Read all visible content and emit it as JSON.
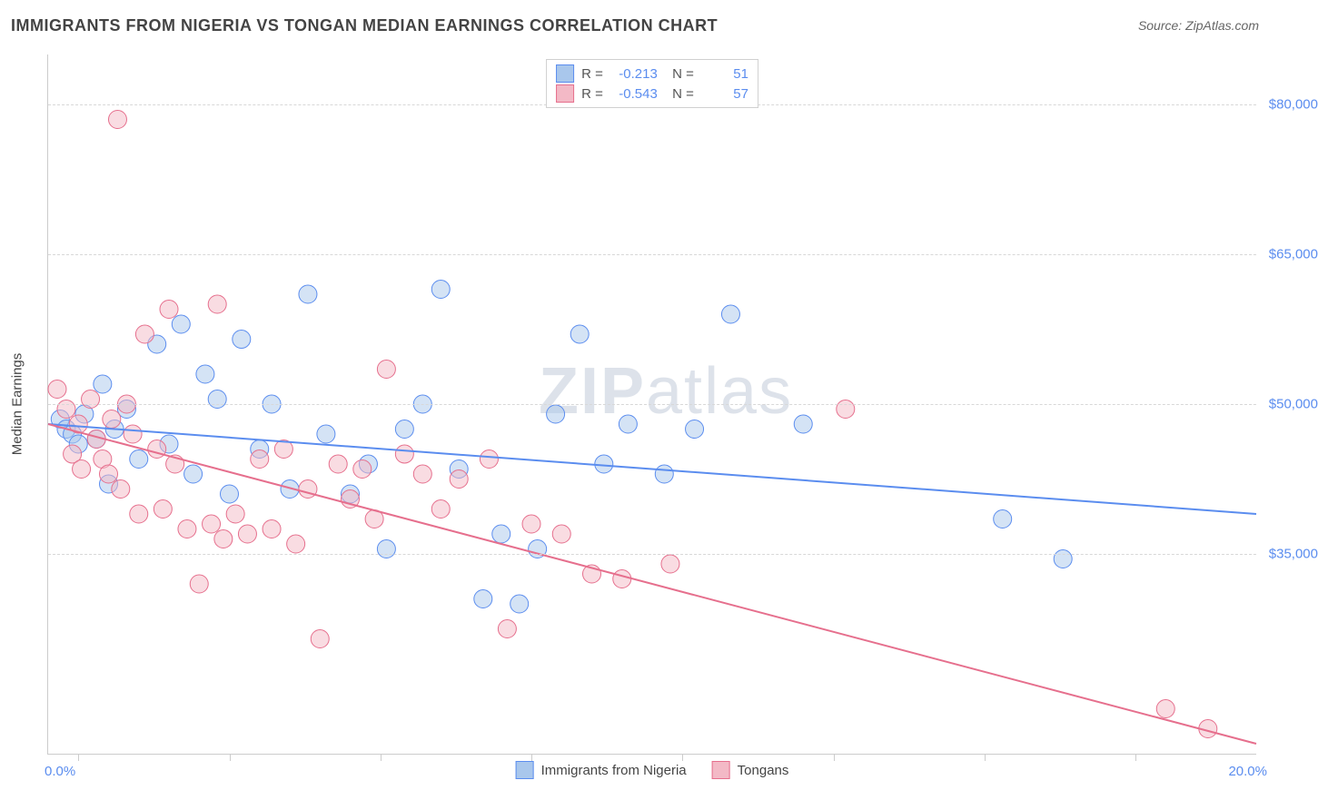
{
  "title": "IMMIGRANTS FROM NIGERIA VS TONGAN MEDIAN EARNINGS CORRELATION CHART",
  "source": "Source: ZipAtlas.com",
  "watermark": {
    "bold": "ZIP",
    "rest": "atlas"
  },
  "yaxis_title": "Median Earnings",
  "chart": {
    "type": "scatter",
    "xlim": [
      0,
      20
    ],
    "ylim": [
      15000,
      85000
    ],
    "xtick_positions": [
      0.5,
      3.0,
      5.5,
      8.0,
      10.5,
      13.0,
      15.5,
      18.0
    ],
    "xaxis_label_left": "0.0%",
    "xaxis_label_right": "20.0%",
    "yticks": [
      {
        "v": 35000,
        "label": "$35,000"
      },
      {
        "v": 50000,
        "label": "$50,000"
      },
      {
        "v": 65000,
        "label": "$65,000"
      },
      {
        "v": 80000,
        "label": "$80,000"
      }
    ],
    "grid_color": "#d8d8d8",
    "background_color": "#ffffff",
    "marker_radius": 10,
    "marker_opacity": 0.5,
    "line_width": 2,
    "series": [
      {
        "name": "Immigrants from Nigeria",
        "color_fill": "#a9c7ec",
        "color_stroke": "#5b8def",
        "R": "-0.213",
        "N": "51",
        "trend": {
          "x1": 0,
          "y1": 48000,
          "x2": 20,
          "y2": 39000
        },
        "points": [
          [
            0.2,
            48500
          ],
          [
            0.3,
            47500
          ],
          [
            0.4,
            47000
          ],
          [
            0.5,
            46000
          ],
          [
            0.6,
            49000
          ],
          [
            0.8,
            46500
          ],
          [
            0.9,
            52000
          ],
          [
            1.0,
            42000
          ],
          [
            1.1,
            47500
          ],
          [
            1.3,
            49500
          ],
          [
            1.5,
            44500
          ],
          [
            1.8,
            56000
          ],
          [
            2.0,
            46000
          ],
          [
            2.2,
            58000
          ],
          [
            2.4,
            43000
          ],
          [
            2.6,
            53000
          ],
          [
            2.8,
            50500
          ],
          [
            3.0,
            41000
          ],
          [
            3.2,
            56500
          ],
          [
            3.5,
            45500
          ],
          [
            3.7,
            50000
          ],
          [
            4.0,
            41500
          ],
          [
            4.3,
            61000
          ],
          [
            4.6,
            47000
          ],
          [
            5.0,
            41000
          ],
          [
            5.3,
            44000
          ],
          [
            5.6,
            35500
          ],
          [
            5.9,
            47500
          ],
          [
            6.2,
            50000
          ],
          [
            6.5,
            61500
          ],
          [
            6.8,
            43500
          ],
          [
            7.2,
            30500
          ],
          [
            7.5,
            37000
          ],
          [
            7.8,
            30000
          ],
          [
            8.1,
            35500
          ],
          [
            8.4,
            49000
          ],
          [
            8.8,
            57000
          ],
          [
            9.2,
            44000
          ],
          [
            9.6,
            48000
          ],
          [
            10.2,
            43000
          ],
          [
            10.7,
            47500
          ],
          [
            11.3,
            59000
          ],
          [
            12.5,
            48000
          ],
          [
            15.8,
            38500
          ],
          [
            16.8,
            34500
          ]
        ]
      },
      {
        "name": "Tongans",
        "color_fill": "#f3b9c6",
        "color_stroke": "#e66f8d",
        "R": "-0.543",
        "N": "57",
        "trend": {
          "x1": 0,
          "y1": 48000,
          "x2": 20,
          "y2": 16000
        },
        "points": [
          [
            0.15,
            51500
          ],
          [
            0.3,
            49500
          ],
          [
            0.4,
            45000
          ],
          [
            0.5,
            48000
          ],
          [
            0.55,
            43500
          ],
          [
            0.7,
            50500
          ],
          [
            0.8,
            46500
          ],
          [
            0.9,
            44500
          ],
          [
            1.0,
            43000
          ],
          [
            1.05,
            48500
          ],
          [
            1.15,
            78500
          ],
          [
            1.2,
            41500
          ],
          [
            1.3,
            50000
          ],
          [
            1.4,
            47000
          ],
          [
            1.5,
            39000
          ],
          [
            1.6,
            57000
          ],
          [
            1.8,
            45500
          ],
          [
            1.9,
            39500
          ],
          [
            2.0,
            59500
          ],
          [
            2.1,
            44000
          ],
          [
            2.3,
            37500
          ],
          [
            2.5,
            32000
          ],
          [
            2.7,
            38000
          ],
          [
            2.8,
            60000
          ],
          [
            2.9,
            36500
          ],
          [
            3.1,
            39000
          ],
          [
            3.3,
            37000
          ],
          [
            3.5,
            44500
          ],
          [
            3.7,
            37500
          ],
          [
            3.9,
            45500
          ],
          [
            4.1,
            36000
          ],
          [
            4.3,
            41500
          ],
          [
            4.5,
            26500
          ],
          [
            4.8,
            44000
          ],
          [
            5.0,
            40500
          ],
          [
            5.2,
            43500
          ],
          [
            5.4,
            38500
          ],
          [
            5.6,
            53500
          ],
          [
            5.9,
            45000
          ],
          [
            6.2,
            43000
          ],
          [
            6.5,
            39500
          ],
          [
            6.8,
            42500
          ],
          [
            7.3,
            44500
          ],
          [
            7.6,
            27500
          ],
          [
            8.0,
            38000
          ],
          [
            8.5,
            37000
          ],
          [
            9.0,
            33000
          ],
          [
            9.5,
            32500
          ],
          [
            10.3,
            34000
          ],
          [
            13.2,
            49500
          ],
          [
            18.5,
            19500
          ],
          [
            19.2,
            17500
          ]
        ]
      }
    ]
  },
  "legend_bottom": [
    {
      "label": "Immigrants from Nigeria",
      "fill": "#a9c7ec",
      "stroke": "#5b8def"
    },
    {
      "label": "Tongans",
      "fill": "#f3b9c6",
      "stroke": "#e66f8d"
    }
  ]
}
